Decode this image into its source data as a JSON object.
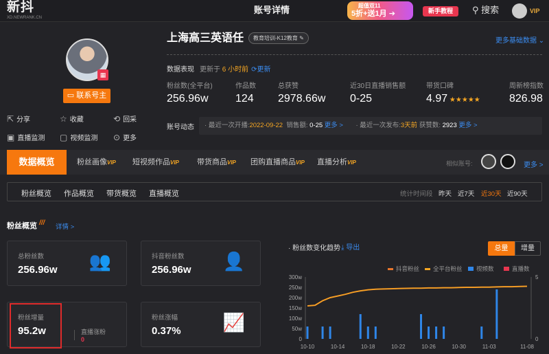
{
  "header": {
    "logo": "新抖",
    "logo_sub": "XD.NEWRANK.CN",
    "title": "账号详情",
    "promo_line1": "超值双11",
    "promo_line2": "5折+送1月",
    "tutorial": "新手教程",
    "search": "搜索",
    "vip": "VIP"
  },
  "profile": {
    "name": "上海高三英语任",
    "tag": "教育培训-K12教育",
    "contact": "联系号主",
    "more_basic": "更多基础数据",
    "actions": [
      {
        "icon": "share-icon",
        "label": "分享"
      },
      {
        "icon": "star-icon",
        "label": "收藏"
      },
      {
        "icon": "recollect-icon",
        "label": "回采"
      },
      {
        "icon": "live-monitor-icon",
        "label": "直播监测"
      },
      {
        "icon": "video-monitor-icon",
        "label": "视频监测"
      },
      {
        "icon": "more-icon",
        "label": "更多"
      }
    ]
  },
  "performance": {
    "label": "数据表现",
    "updated_prefix": "更新于",
    "updated_value": "6 小时前",
    "refresh": "更新"
  },
  "stats": [
    {
      "label": "粉丝数(全平台)",
      "value": "256.96w"
    },
    {
      "label": "作品数",
      "value": "124"
    },
    {
      "label": "总获赞",
      "value": "2978.66w"
    },
    {
      "label": "近30日直播销售额",
      "value": "0-25"
    },
    {
      "label": "带货口碑",
      "value": "4.97",
      "stars": 5
    },
    {
      "label": "周新榜指数",
      "value": "826.98"
    }
  ],
  "dynamics": {
    "label": "账号动态",
    "live_prefix": "最近一次开播:",
    "live_date": "2022-09-22",
    "sales_label": "销售额:",
    "sales": "0-25",
    "more1": "更多 >",
    "post_prefix": "最近一次发布:",
    "post_when": "3天前",
    "likes_label": "获赞数:",
    "likes": "2923",
    "more2": "更多 >"
  },
  "tabs": [
    {
      "label": "数据概览",
      "vip": false,
      "active": true
    },
    {
      "label": "粉丝画像",
      "vip": true
    },
    {
      "label": "短视频作品",
      "vip": true
    },
    {
      "label": "带货商品",
      "vip": true
    },
    {
      "label": "团购直播商品",
      "vip": true
    },
    {
      "label": "直播分析",
      "vip": true
    }
  ],
  "vip_badge": "VIP",
  "similar": {
    "label": "相似账号:",
    "more": "更多 >"
  },
  "subtabs": [
    "粉丝概览",
    "作品概览",
    "带货概览",
    "直播概览"
  ],
  "range": {
    "label": "统计时间段",
    "options": [
      "昨天",
      "近7天",
      "近30天",
      "近90天"
    ],
    "selected": "近30天"
  },
  "section": {
    "title": "粉丝概览",
    "detail": "详情 >"
  },
  "cards": [
    {
      "label": "总粉丝数",
      "value": "256.96w"
    },
    {
      "label": "抖音粉丝数",
      "value": "256.96w"
    },
    {
      "label": "粉丝增量",
      "value": "95.2w",
      "sub_label": "直播涨粉",
      "sub_value": "0"
    },
    {
      "label": "粉丝涨幅",
      "value": "0.37%"
    }
  ],
  "colors": {
    "accent": "#f6780e",
    "link": "#3b8cf0",
    "line": "#f5a623",
    "bar": "#2f86e8",
    "live": "#e8364f"
  },
  "chart_header": {
    "title": "粉丝数变化趋势",
    "export": "导出",
    "total": "总量",
    "increment": "增量",
    "selected": "总量"
  },
  "chart_data": {
    "type": "line+bar",
    "legend": [
      {
        "name": "抖音粉丝",
        "color": "#e8762c"
      },
      {
        "name": "全平台粉丝",
        "color": "#f5a623"
      },
      {
        "name": "视频数",
        "color": "#2f86e8"
      },
      {
        "name": "直播数",
        "color": "#e8364f"
      }
    ],
    "legend_position": "top-right",
    "x": [
      "10-10",
      "10-11",
      "10-12",
      "10-13",
      "10-14",
      "10-15",
      "10-16",
      "10-17",
      "10-18",
      "10-19",
      "10-20",
      "10-21",
      "10-22",
      "10-23",
      "10-24",
      "10-25",
      "10-26",
      "10-27",
      "10-28",
      "10-29",
      "10-30",
      "10-31",
      "11-01",
      "11-02",
      "11-03",
      "11-04",
      "11-05",
      "11-06",
      "11-07",
      "11-08"
    ],
    "xticks": [
      "10-10",
      "10-14",
      "10-18",
      "10-22",
      "10-26",
      "10-30",
      "11-03",
      "11-08"
    ],
    "y_left": {
      "ticks": [
        "0",
        "50w",
        "100w",
        "150w",
        "200w",
        "250w",
        "300w"
      ],
      "range": [
        0,
        300
      ],
      "unit": "w"
    },
    "y_right": {
      "ticks": [
        "0",
        "5"
      ],
      "range": [
        0,
        5
      ]
    },
    "fans_w": [
      160,
      163,
      185,
      200,
      208,
      216,
      226,
      233,
      238,
      241,
      242,
      243,
      244,
      245,
      246,
      246,
      247,
      247,
      248,
      248,
      249,
      250,
      250,
      251,
      251,
      252,
      253,
      253,
      254,
      255
    ],
    "videos": [
      1,
      0,
      1,
      1,
      0,
      0,
      0,
      2,
      1,
      1,
      0,
      0,
      0,
      0,
      0,
      2,
      1,
      1,
      1,
      0,
      0,
      0,
      0,
      1,
      0,
      4,
      0,
      0,
      0,
      0
    ],
    "lives": [
      0,
      0,
      0,
      0,
      0,
      0,
      0,
      0,
      0,
      0,
      0,
      0,
      0,
      0,
      0,
      0,
      0,
      0,
      0,
      0,
      0,
      0,
      0,
      0,
      0,
      0,
      0,
      0,
      0,
      0
    ]
  }
}
